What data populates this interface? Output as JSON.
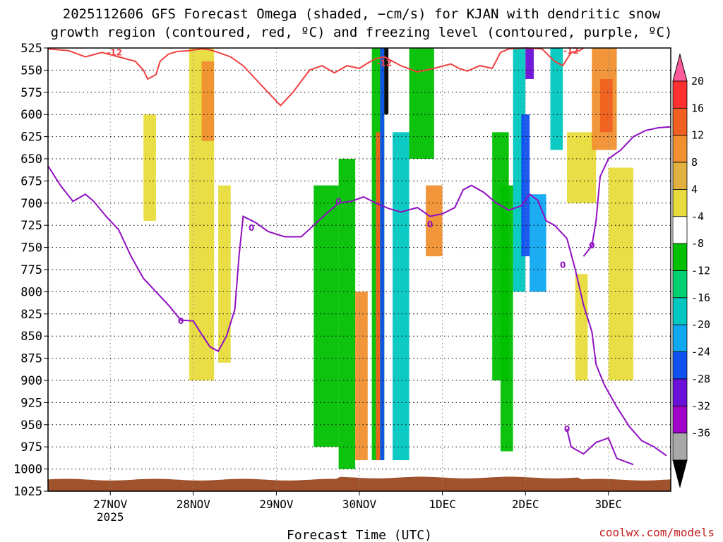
{
  "chart_data": {
    "type": "heatmap",
    "title_line1": "2025112606 GFS Forecast Omega (shaded, −cm/s) for KJAN with dendritic snow",
    "title_line2": "growth region (contoured, red, ºC) and freezing level (contoured, purple, ºC)",
    "xlabel": "Forecast Time (UTC)",
    "credit": "coolwx.com/models",
    "x_range_days": [
      -0.75,
      6.75
    ],
    "x_ticks": [
      {
        "day": 0,
        "label": "27NOV",
        "sub": "2025"
      },
      {
        "day": 1,
        "label": "28NOV",
        "sub": ""
      },
      {
        "day": 2,
        "label": "29NOV",
        "sub": ""
      },
      {
        "day": 3,
        "label": "30NOV",
        "sub": ""
      },
      {
        "day": 4,
        "label": "1DEC",
        "sub": ""
      },
      {
        "day": 5,
        "label": "2DEC",
        "sub": ""
      },
      {
        "day": 6,
        "label": "3DEC",
        "sub": ""
      }
    ],
    "y_range_hpa": [
      525,
      1025
    ],
    "y_ticks": [
      "525",
      "550",
      "575",
      "600",
      "625",
      "650",
      "675",
      "700",
      "725",
      "750",
      "775",
      "800",
      "825",
      "850",
      "875",
      "900",
      "925",
      "950",
      "975",
      "1000",
      "1025"
    ],
    "colorbar": {
      "labels": [
        "20",
        "16",
        "12",
        "8",
        "4",
        "-4",
        "-8",
        "-12",
        "-16",
        "-20",
        "-24",
        "-28",
        "-32",
        "-36"
      ],
      "colors": [
        "#ff5a9a",
        "#ff3030",
        "#f06020",
        "#f09030",
        "#e0b040",
        "#e8dc3c",
        "#ffffff",
        "#00c000",
        "#00d070",
        "#00c8c0",
        "#10a8f0",
        "#1050f0",
        "#6a10d8",
        "#a000c8",
        "#a8a8a8",
        "#000000"
      ]
    },
    "contour_labels": {
      "dgz": "-12",
      "freezing": "0"
    },
    "omega_features": [
      {
        "t0": 0.95,
        "t1": 1.25,
        "p0": 525,
        "p1": 900,
        "color": "#e8dc3c"
      },
      {
        "t0": 1.1,
        "t1": 1.25,
        "p0": 540,
        "p1": 630,
        "color": "#f09030"
      },
      {
        "t0": 0.4,
        "t1": 0.55,
        "p0": 600,
        "p1": 720,
        "color": "#e8dc3c"
      },
      {
        "t0": 1.3,
        "t1": 1.45,
        "p0": 680,
        "p1": 880,
        "color": "#e8dc3c"
      },
      {
        "t0": 2.45,
        "t1": 2.75,
        "p0": 680,
        "p1": 975,
        "color": "#00c000"
      },
      {
        "t0": 2.75,
        "t1": 2.95,
        "p0": 650,
        "p1": 1000,
        "color": "#00c000"
      },
      {
        "t0": 2.95,
        "t1": 3.1,
        "p0": 800,
        "p1": 990,
        "color": "#f09030"
      },
      {
        "t0": 3.15,
        "t1": 3.3,
        "p0": 525,
        "p1": 990,
        "color": "#00c000"
      },
      {
        "t0": 3.2,
        "t1": 3.25,
        "p0": 620,
        "p1": 990,
        "color": "#f06020"
      },
      {
        "t0": 3.25,
        "t1": 3.3,
        "p0": 525,
        "p1": 990,
        "color": "#1050f0"
      },
      {
        "t0": 3.3,
        "t1": 3.35,
        "p0": 525,
        "p1": 600,
        "color": "#000000"
      },
      {
        "t0": 3.4,
        "t1": 3.6,
        "p0": 620,
        "p1": 990,
        "color": "#00c8c0"
      },
      {
        "t0": 3.6,
        "t1": 3.9,
        "p0": 525,
        "p1": 650,
        "color": "#00c000"
      },
      {
        "t0": 3.8,
        "t1": 4.0,
        "p0": 680,
        "p1": 760,
        "color": "#f09030"
      },
      {
        "t0": 4.6,
        "t1": 4.8,
        "p0": 620,
        "p1": 900,
        "color": "#00c000"
      },
      {
        "t0": 4.7,
        "t1": 4.85,
        "p0": 680,
        "p1": 980,
        "color": "#00c000"
      },
      {
        "t0": 4.85,
        "t1": 5.0,
        "p0": 525,
        "p1": 800,
        "color": "#00c8c0"
      },
      {
        "t0": 4.95,
        "t1": 5.05,
        "p0": 600,
        "p1": 760,
        "color": "#1050f0"
      },
      {
        "t0": 5.05,
        "t1": 5.25,
        "p0": 690,
        "p1": 800,
        "color": "#10a8f0"
      },
      {
        "t0": 5.0,
        "t1": 5.1,
        "p0": 525,
        "p1": 560,
        "color": "#6a10d8"
      },
      {
        "t0": 5.3,
        "t1": 5.45,
        "p0": 525,
        "p1": 640,
        "color": "#00c8c0"
      },
      {
        "t0": 5.5,
        "t1": 5.85,
        "p0": 620,
        "p1": 700,
        "color": "#e8dc3c"
      },
      {
        "t0": 5.8,
        "t1": 6.1,
        "p0": 525,
        "p1": 640,
        "color": "#f09030"
      },
      {
        "t0": 5.9,
        "t1": 6.05,
        "p0": 560,
        "p1": 620,
        "color": "#f06020"
      },
      {
        "t0": 6.0,
        "t1": 6.3,
        "p0": 660,
        "p1": 900,
        "color": "#e8dc3c"
      },
      {
        "t0": 5.6,
        "t1": 5.75,
        "p0": 780,
        "p1": 900,
        "color": "#e8dc3c"
      }
    ],
    "dgz_contour": [
      [
        -0.75,
        526
      ],
      [
        -0.5,
        528
      ],
      [
        -0.3,
        535
      ],
      [
        -0.1,
        530
      ],
      [
        0.3,
        540
      ],
      [
        0.4,
        550
      ],
      [
        0.45,
        560
      ],
      [
        0.55,
        555
      ],
      [
        0.6,
        540
      ],
      [
        0.7,
        532
      ],
      [
        0.8,
        529
      ],
      [
        0.95,
        528
      ],
      [
        1.1,
        526
      ],
      [
        1.2,
        527
      ],
      [
        1.3,
        530
      ],
      [
        1.45,
        535
      ],
      [
        1.6,
        545
      ],
      [
        1.75,
        560
      ],
      [
        1.9,
        575
      ],
      [
        2.05,
        590
      ],
      [
        2.2,
        575
      ],
      [
        2.4,
        550
      ],
      [
        2.55,
        545
      ],
      [
        2.7,
        553
      ],
      [
        2.85,
        545
      ],
      [
        3.0,
        548
      ],
      [
        3.1,
        542
      ],
      [
        3.2,
        537
      ],
      [
        3.3,
        535
      ],
      [
        3.5,
        545
      ],
      [
        3.7,
        552
      ],
      [
        3.9,
        548
      ],
      [
        4.1,
        543
      ],
      [
        4.2,
        548
      ],
      [
        4.3,
        551
      ],
      [
        4.45,
        545
      ],
      [
        4.6,
        548
      ],
      [
        4.7,
        530
      ],
      [
        4.8,
        526
      ],
      [
        5.0,
        525
      ],
      [
        5.2,
        526
      ],
      [
        5.35,
        540
      ],
      [
        5.45,
        545
      ],
      [
        5.55,
        530
      ],
      [
        5.65,
        528
      ],
      [
        5.7,
        525
      ]
    ],
    "freezing_contour": [
      [
        -0.75,
        658
      ],
      [
        -0.6,
        680
      ],
      [
        -0.45,
        698
      ],
      [
        -0.3,
        690
      ],
      [
        -0.2,
        698
      ],
      [
        -0.05,
        715
      ],
      [
        0.1,
        730
      ],
      [
        0.25,
        760
      ],
      [
        0.4,
        785
      ],
      [
        0.55,
        800
      ],
      [
        0.7,
        815
      ],
      [
        0.85,
        832
      ],
      [
        1.0,
        833
      ],
      [
        1.1,
        848
      ],
      [
        1.2,
        862
      ],
      [
        1.3,
        867
      ],
      [
        1.4,
        850
      ],
      [
        1.5,
        820
      ],
      [
        1.55,
        760
      ],
      [
        1.6,
        715
      ],
      [
        1.75,
        722
      ],
      [
        1.9,
        732
      ],
      [
        2.1,
        738
      ],
      [
        2.3,
        738
      ],
      [
        2.45,
        725
      ],
      [
        2.6,
        712
      ],
      [
        2.75,
        700
      ],
      [
        2.9,
        698
      ],
      [
        3.05,
        693
      ],
      [
        3.2,
        700
      ],
      [
        3.35,
        706
      ],
      [
        3.5,
        710
      ],
      [
        3.7,
        705
      ],
      [
        3.85,
        715
      ],
      [
        4.0,
        712
      ],
      [
        4.15,
        705
      ],
      [
        4.25,
        685
      ],
      [
        4.35,
        680
      ],
      [
        4.5,
        688
      ],
      [
        4.65,
        700
      ],
      [
        4.8,
        708
      ],
      [
        4.95,
        703
      ],
      [
        5.05,
        690
      ],
      [
        5.15,
        697
      ],
      [
        5.25,
        720
      ],
      [
        5.35,
        725
      ],
      [
        5.5,
        740
      ],
      [
        5.6,
        775
      ],
      [
        5.7,
        815
      ],
      [
        5.8,
        845
      ],
      [
        5.85,
        882
      ],
      [
        5.95,
        905
      ],
      [
        6.1,
        930
      ],
      [
        6.25,
        952
      ],
      [
        6.4,
        968
      ],
      [
        6.55,
        975
      ],
      [
        6.7,
        985
      ]
    ],
    "freezing_contour_upper": [
      [
        5.7,
        760
      ],
      [
        5.8,
        748
      ],
      [
        5.85,
        720
      ],
      [
        5.9,
        670
      ],
      [
        6.0,
        650
      ],
      [
        6.15,
        640
      ],
      [
        6.3,
        625
      ],
      [
        6.45,
        618
      ],
      [
        6.6,
        615
      ],
      [
        6.75,
        614
      ]
    ],
    "freezing_contour_lower": [
      [
        5.5,
        955
      ],
      [
        5.55,
        975
      ],
      [
        5.7,
        983
      ],
      [
        5.85,
        970
      ],
      [
        6.0,
        965
      ],
      [
        6.1,
        988
      ],
      [
        6.3,
        995
      ]
    ],
    "terrain_top_hpa": 1012
  }
}
